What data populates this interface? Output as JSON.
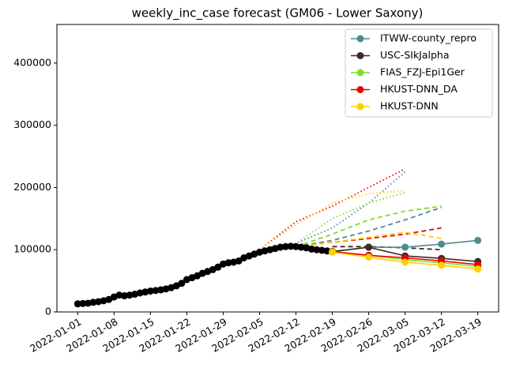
{
  "chart_data": {
    "type": "line",
    "title": "weekly_inc_case forecast (GM06 - Lower Saxony)",
    "xlim": [
      "2021-12-28",
      "2022-03-23"
    ],
    "xticks": [
      "2022-01-01",
      "2022-01-08",
      "2022-01-15",
      "2022-01-22",
      "2022-01-29",
      "2022-02-05",
      "2022-02-12",
      "2022-02-19",
      "2022-02-26",
      "2022-03-05",
      "2022-03-12",
      "2022-03-19"
    ],
    "ylim": [
      0,
      462000
    ],
    "yticks": [
      0,
      100000,
      200000,
      300000,
      400000
    ],
    "legend": "upper right",
    "truth": {
      "color": "#000000",
      "x": [
        "2022-01-01",
        "2022-01-02",
        "2022-01-03",
        "2022-01-04",
        "2022-01-05",
        "2022-01-06",
        "2022-01-07",
        "2022-01-08",
        "2022-01-09",
        "2022-01-10",
        "2022-01-11",
        "2022-01-12",
        "2022-01-13",
        "2022-01-14",
        "2022-01-15",
        "2022-01-16",
        "2022-01-17",
        "2022-01-18",
        "2022-01-19",
        "2022-01-20",
        "2022-01-21",
        "2022-01-22",
        "2022-01-23",
        "2022-01-24",
        "2022-01-25",
        "2022-01-26",
        "2022-01-27",
        "2022-01-28",
        "2022-01-29",
        "2022-01-30",
        "2022-01-31",
        "2022-02-01",
        "2022-02-02",
        "2022-02-03",
        "2022-02-04",
        "2022-02-05",
        "2022-02-06",
        "2022-02-07",
        "2022-02-08",
        "2022-02-09",
        "2022-02-10",
        "2022-02-11",
        "2022-02-12",
        "2022-02-13",
        "2022-02-14",
        "2022-02-15",
        "2022-02-16",
        "2022-02-17",
        "2022-02-18",
        "2022-02-19"
      ],
      "values": [
        13000,
        13500,
        14000,
        15500,
        16500,
        18000,
        20000,
        24000,
        27000,
        26000,
        27000,
        28500,
        30500,
        32000,
        33500,
        34500,
        35500,
        37000,
        39000,
        42000,
        46000,
        52000,
        55000,
        58000,
        62000,
        65000,
        68000,
        72000,
        77000,
        79000,
        80000,
        82000,
        87000,
        90000,
        93000,
        96000,
        98000,
        100000,
        102000,
        104000,
        105000,
        105500,
        105000,
        104000,
        103000,
        101000,
        100000,
        99000,
        98000,
        97000
      ]
    },
    "series": [
      {
        "name": "ITWW-county_repro",
        "color": "#4e8b8f",
        "x": [
          "2022-02-19",
          "2022-02-26",
          "2022-03-05",
          "2022-03-12",
          "2022-03-19"
        ],
        "values": [
          97000,
          104000,
          104000,
          109000,
          115000
        ],
        "dashed": {
          "x": [
            "2022-02-12",
            "2022-02-19",
            "2022-02-26",
            "2022-03-05",
            "2022-03-12"
          ],
          "values": [
            105000,
            115000,
            130000,
            148000,
            168000
          ]
        },
        "dotted": {
          "x": [
            "2022-02-05",
            "2022-02-12",
            "2022-02-19",
            "2022-02-26",
            "2022-03-05"
          ],
          "values": [
            100000,
            110000,
            135000,
            175000,
            225000
          ]
        }
      },
      {
        "name": "USC-SIkJalpha",
        "color": "#3d2b25",
        "x": [
          "2022-02-19",
          "2022-02-26",
          "2022-03-05",
          "2022-03-12",
          "2022-03-19"
        ],
        "values": [
          97000,
          104000,
          90000,
          86000,
          81000
        ],
        "dashed": {
          "x": [
            "2022-02-19",
            "2022-02-26",
            "2022-03-05",
            "2022-03-12"
          ],
          "values": [
            105000,
            105000,
            103000,
            100000
          ]
        }
      },
      {
        "name": "FIAS_FZJ-Epi1Ger",
        "color": "#7fdc2a",
        "x": [
          "2022-02-19",
          "2022-02-26",
          "2022-03-05",
          "2022-03-12",
          "2022-03-19"
        ],
        "values": [
          97000,
          91000,
          84000,
          79000,
          73000
        ],
        "dashed": {
          "x": [
            "2022-02-12",
            "2022-02-19",
            "2022-02-26",
            "2022-03-05",
            "2022-03-12"
          ],
          "values": [
            105000,
            125000,
            148000,
            162000,
            170000
          ]
        },
        "dotted": {
          "x": [
            "2022-02-05",
            "2022-02-12",
            "2022-02-19",
            "2022-02-26",
            "2022-03-05"
          ],
          "values": [
            100000,
            110000,
            150000,
            175000,
            192000
          ]
        }
      },
      {
        "name": "HKUST-DNN_DA",
        "color": "#ee0000",
        "x": [
          "2022-02-19",
          "2022-02-26",
          "2022-03-05",
          "2022-03-12",
          "2022-03-19"
        ],
        "values": [
          97000,
          91000,
          87000,
          82000,
          76000
        ],
        "dashed": {
          "x": [
            "2022-02-12",
            "2022-02-19",
            "2022-02-26",
            "2022-03-05",
            "2022-03-12"
          ],
          "values": [
            105000,
            112000,
            118000,
            125000,
            135000
          ]
        },
        "dotted": {
          "x": [
            "2022-02-05",
            "2022-02-12",
            "2022-02-19",
            "2022-02-26",
            "2022-03-05"
          ],
          "values": [
            100000,
            145000,
            170000,
            200000,
            230000
          ]
        }
      },
      {
        "name": "HKUST-DNN",
        "color": "#ffd000",
        "x": [
          "2022-02-19",
          "2022-02-26",
          "2022-03-05",
          "2022-03-12",
          "2022-03-19"
        ],
        "values": [
          96000,
          88000,
          80000,
          75000,
          69000
        ],
        "dashed": {
          "x": [
            "2022-02-12",
            "2022-02-19",
            "2022-02-26",
            "2022-03-05",
            "2022-03-12"
          ],
          "values": [
            105000,
            112000,
            120000,
            128000,
            118000
          ]
        },
        "dotted": {
          "x": [
            "2022-02-05",
            "2022-02-12",
            "2022-02-19",
            "2022-02-26",
            "2022-03-05"
          ],
          "values": [
            100000,
            140000,
            175000,
            190000,
            195000
          ]
        }
      }
    ]
  }
}
